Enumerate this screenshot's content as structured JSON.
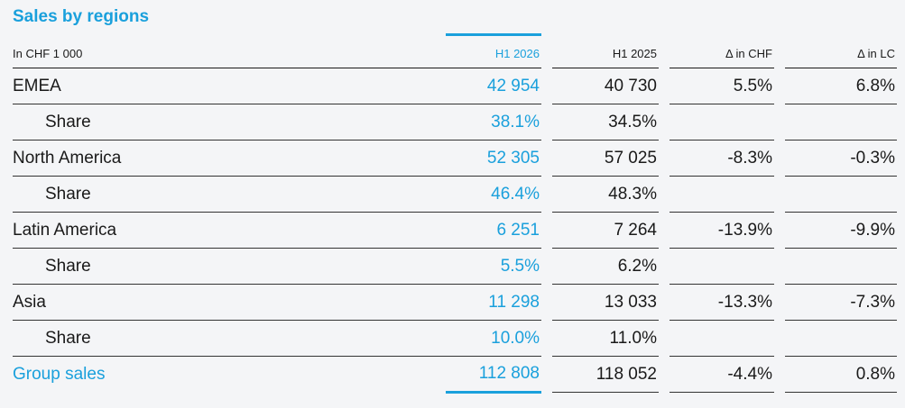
{
  "title": "Sales by regions",
  "columns": {
    "label": "In CHF 1 000",
    "h1_2026": "H1 2026",
    "h1_2025": "H1 2025",
    "delta_chf": "Δ in CHF",
    "delta_lc": "Δ in LC"
  },
  "rows": [
    {
      "label": "EMEA",
      "h1_2026": "42 954",
      "h1_2025": "40 730",
      "delta_chf": "5.5%",
      "delta_lc": "6.8%"
    },
    {
      "label": "Share",
      "h1_2026": "38.1%",
      "h1_2025": "34.5%",
      "delta_chf": "",
      "delta_lc": ""
    },
    {
      "label": "North America",
      "h1_2026": "52 305",
      "h1_2025": "57 025",
      "delta_chf": "-8.3%",
      "delta_lc": "-0.3%"
    },
    {
      "label": "Share",
      "h1_2026": "46.4%",
      "h1_2025": "48.3%",
      "delta_chf": "",
      "delta_lc": ""
    },
    {
      "label": "Latin America",
      "h1_2026": "6 251",
      "h1_2025": "7 264",
      "delta_chf": "-13.9%",
      "delta_lc": "-9.9%"
    },
    {
      "label": "Share",
      "h1_2026": "5.5%",
      "h1_2025": "6.2%",
      "delta_chf": "",
      "delta_lc": ""
    },
    {
      "label": "Asia",
      "h1_2026": "11 298",
      "h1_2025": "13 033",
      "delta_chf": "-13.3%",
      "delta_lc": "-7.3%"
    },
    {
      "label": "Share",
      "h1_2026": "10.0%",
      "h1_2025": "11.0%",
      "delta_chf": "",
      "delta_lc": ""
    },
    {
      "label": "Group sales",
      "h1_2026": "112 808",
      "h1_2025": "118 052",
      "delta_chf": "-4.4%",
      "delta_lc": "0.8%"
    }
  ],
  "colors": {
    "accent": "#1aa0dc",
    "text": "#1a1a1a",
    "background": "#f4f5f7"
  }
}
